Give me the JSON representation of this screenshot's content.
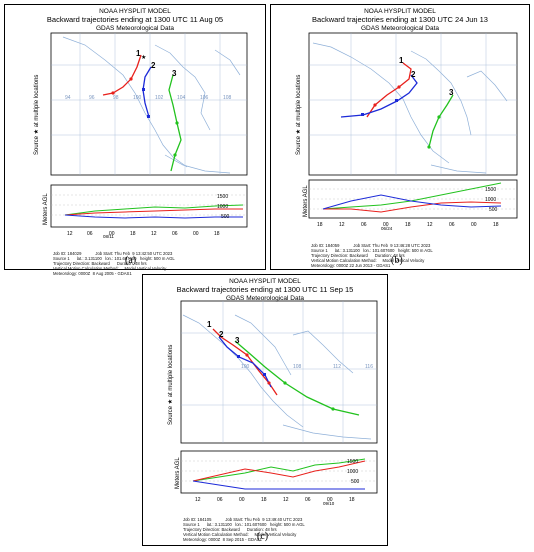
{
  "panels": [
    {
      "id": "a",
      "label": "(a)",
      "title1": "NOAA HYSPLIT MODEL",
      "title2": "Backward trajectories ending at 1300 UTC 11 Aug 05",
      "title3": "GDAS Meteorological Data",
      "source_label": "Source ★ at multiple locations",
      "agl_label": "Meters AGL",
      "levels": [
        "1500",
        "1000",
        "500"
      ],
      "time_ticks": [
        "12",
        "06",
        "00",
        "18",
        "12",
        "06",
        "00",
        "18"
      ],
      "date_label": "08/11",
      "lon_ticks": [
        "94",
        "96",
        "98",
        "100",
        "102",
        "104",
        "106",
        "108"
      ],
      "traj_labels": [
        "1",
        "2",
        "3"
      ],
      "meta": [
        "Job ID: 184029            Job Start: Thu Feb  9 13:42:50 UTC 2023",
        "Source 1      lat.: 3.131100   lon.: 101.607600   height: 500 m AGL",
        "Trajectory Direction: Backward      Duration: 48 hrs",
        "Vertical Motion Calculation Method:     Model Vertical Velocity",
        "Meteorology: 0000Z  8 Aug 2005 - GDAS1"
      ]
    },
    {
      "id": "b",
      "label": "(b)",
      "title1": "NOAA HYSPLIT MODEL",
      "title2": "Backward trajectories ending at 1300 UTC 24 Jun 13",
      "title3": "GDAS Meteorological Data",
      "source_label": "Source ★ at multiple locations",
      "agl_label": "Meters AGL",
      "levels": [
        "1500",
        "1000",
        "500"
      ],
      "time_ticks": [
        "18",
        "12",
        "06",
        "00",
        "18",
        "12",
        "06",
        "00",
        "18"
      ],
      "date_label": "06/24",
      "lon_ticks": [],
      "traj_labels": [
        "1",
        "2",
        "3"
      ],
      "meta": [
        "Job ID: 184059            Job Start: Thu Feb  9 13:46:28 UTC 2023",
        "Source 1      lat.: 3.131100   lon.: 101.607600   height: 500 m AGL",
        "Trajectory Direction: Backward      Duration: 48 hrs",
        "Vertical Motion Calculation Method:     Model Vertical Velocity",
        "Meteorology: 0000Z 22 Jun 2013 - GDAS1"
      ]
    },
    {
      "id": "c",
      "label": "(c)",
      "title1": "NOAA HYSPLIT MODEL",
      "title2": "Backward trajectories ending at 1300 UTC 11 Sep 15",
      "title3": "GDAS Meteorological Data",
      "source_label": "Source ★ at multiple locations",
      "agl_label": "Meters AGL",
      "levels": [
        "1500",
        "1000",
        "500"
      ],
      "time_ticks": [
        "12",
        "06",
        "00",
        "18",
        "12",
        "06",
        "00",
        "18"
      ],
      "date_label": "09/10",
      "lon_ticks": [
        "100",
        "108",
        "112",
        "116"
      ],
      "traj_labels": [
        "1",
        "2",
        "3"
      ],
      "meta": [
        "Job ID: 184105            Job Start: Thu Feb  9 13:49:40 UTC 2023",
        "Source 1      lat.: 3.131100   lon.: 101.607600   height: 500 m AGL",
        "Trajectory Direction: Backward      Duration: 48 hrs",
        "Vertical Motion Calculation Method:     Model Vertical Velocity",
        "Meteorology: 0000Z  8 Sep 2015 - GDAS1"
      ]
    }
  ],
  "colors": {
    "traj1": "#e8201c",
    "traj2": "#1c2ad8",
    "traj3": "#22c21e",
    "coast": "#8fb0d8",
    "grid": "#9fb6d6"
  }
}
